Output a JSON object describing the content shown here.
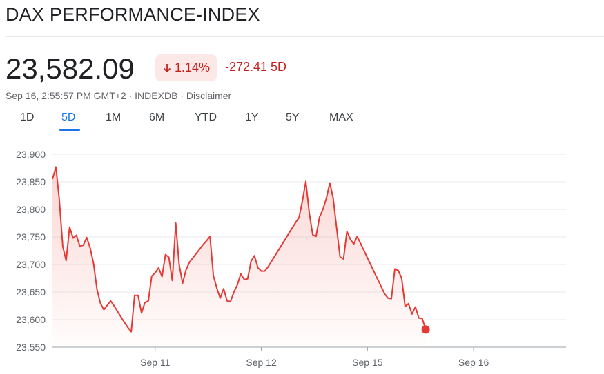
{
  "header": {
    "title": "DAX PERFORMANCE-INDEX"
  },
  "quote": {
    "price": "23,582.09",
    "change_pct": "1.14%",
    "change_abs": "-272.41 5D",
    "timestamp": "Sep 16, 2:55:57 PM GMT+2",
    "dot1": " · ",
    "source": "INDEXDB",
    "dot2": " · ",
    "disclaimer": "Disclaimer",
    "down_color": "#c5221f",
    "down_bg": "#fce8e6"
  },
  "tabs": [
    {
      "label": "1D"
    },
    {
      "label": "5D",
      "active": true
    },
    {
      "label": "1M"
    },
    {
      "label": "6M"
    },
    {
      "label": "YTD"
    },
    {
      "label": "1Y"
    },
    {
      "label": "5Y"
    },
    {
      "label": "MAX"
    }
  ],
  "chart_data": {
    "type": "area",
    "title": "",
    "xlabel": "",
    "ylabel": "",
    "ylim": [
      23550,
      23900
    ],
    "yticks": [
      23550,
      23600,
      23650,
      23700,
      23750,
      23800,
      23850,
      23900
    ],
    "ytick_labels": [
      "23,550",
      "23,600",
      "23,650",
      "23,700",
      "23,750",
      "23,800",
      "23,850",
      "23,900"
    ],
    "xticks": [
      {
        "label": "Sep 11",
        "index": 30
      },
      {
        "label": "Sep 12",
        "index": 61
      },
      {
        "label": "Sep 15",
        "index": 92
      },
      {
        "label": "Sep 16",
        "index": 123
      }
    ],
    "xlim": [
      0,
      150
    ],
    "grid": true,
    "line_color": "#e53935",
    "series": [
      {
        "values": [
          23855,
          23877,
          23818,
          23733,
          23707,
          23768,
          23748,
          23753,
          23733,
          23735,
          23749,
          23730,
          23702,
          23655,
          23630,
          23618,
          23626,
          23634,
          23625,
          23615,
          23605,
          23595,
          23586,
          23578,
          23644,
          23644,
          23612,
          23631,
          23634,
          23679,
          23685,
          23694,
          23678,
          23718,
          23713,
          23671,
          23775,
          23700,
          23666,
          23690,
          23704,
          23712,
          23720,
          23728,
          23736,
          23743,
          23751,
          23680,
          23657,
          23639,
          23656,
          23634,
          23633,
          23650,
          23663,
          23683,
          23673,
          23674,
          23706,
          23716,
          23694,
          23688,
          23688,
          23696,
          23706,
          23716,
          23726,
          23736,
          23746,
          23756,
          23766,
          23776,
          23785,
          23815,
          23851,
          23794,
          23754,
          23751,
          23786,
          23800,
          23820,
          23848,
          23820,
          23766,
          23714,
          23710,
          23760,
          23746,
          23737,
          23751,
          23738,
          23725,
          23712,
          23699,
          23686,
          23673,
          23660,
          23647,
          23639,
          23638,
          23692,
          23689,
          23675,
          23624,
          23629,
          23610,
          23623,
          23603,
          23602,
          23582
        ]
      }
    ]
  }
}
